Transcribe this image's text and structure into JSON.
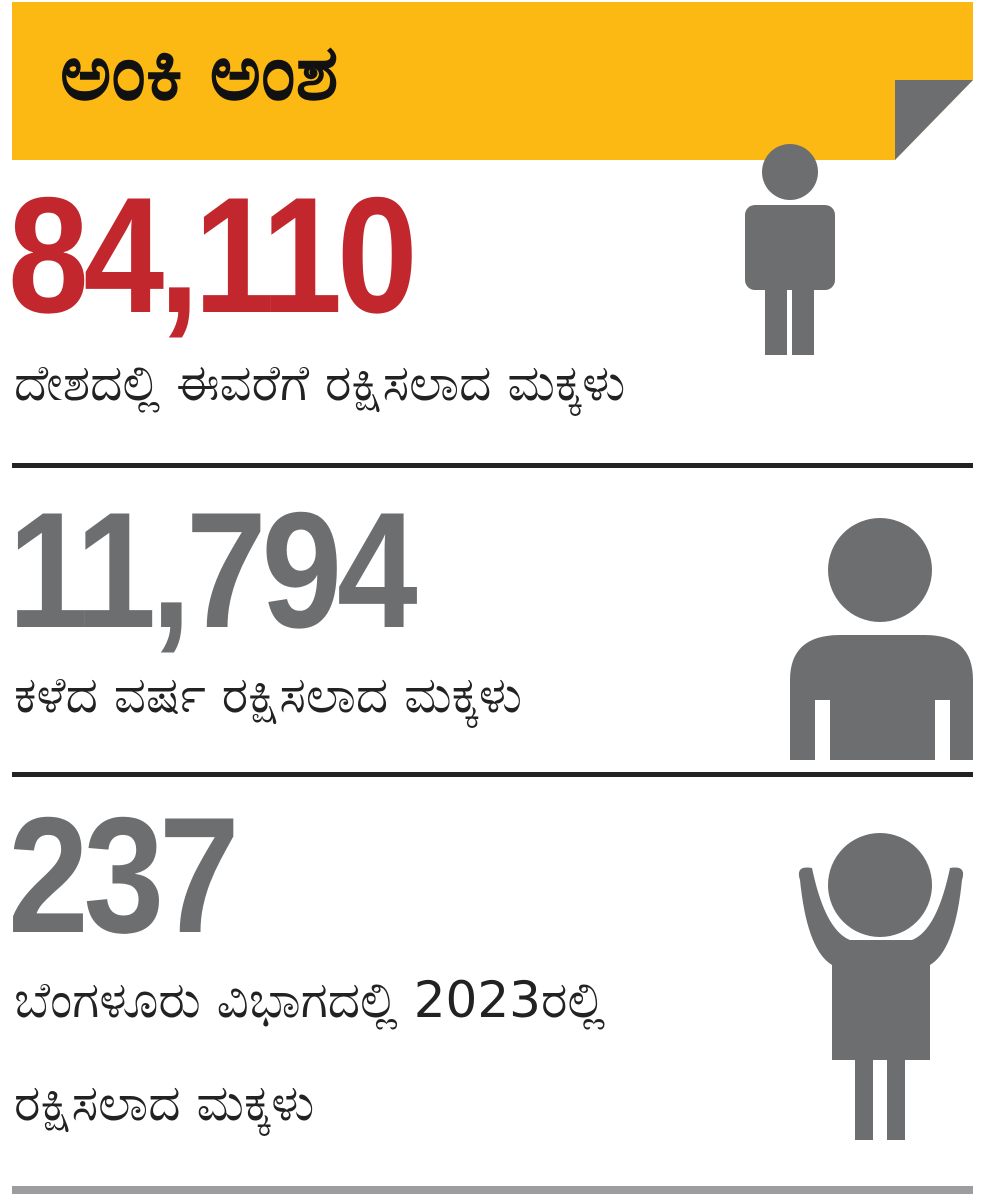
{
  "header": {
    "title": "ಅಂಕಿ ಅಂಶ"
  },
  "stats": [
    {
      "number": "84,110",
      "caption": [
        "ದೇಶದಲ್ಲಿ ಈವರೆಗೆ ರಕ್ಷಿಸಲಾದ ಮಕ್ಕಳು"
      ]
    },
    {
      "number": "11,794",
      "caption": [
        "ಕಳೆದ ವರ್ಷ ರಕ್ಷಿಸಲಾದ ಮಕ್ಕಳು"
      ]
    },
    {
      "number": "237",
      "caption": [
        "ಬೆಂಗಳೂರು ವಿಭಾಗದಲ್ಲಿ 2023ರಲ್ಲಿ",
        "ರಕ್ಷಿಸಲಾದ ಮಕ್ಕಳು"
      ]
    }
  ]
}
